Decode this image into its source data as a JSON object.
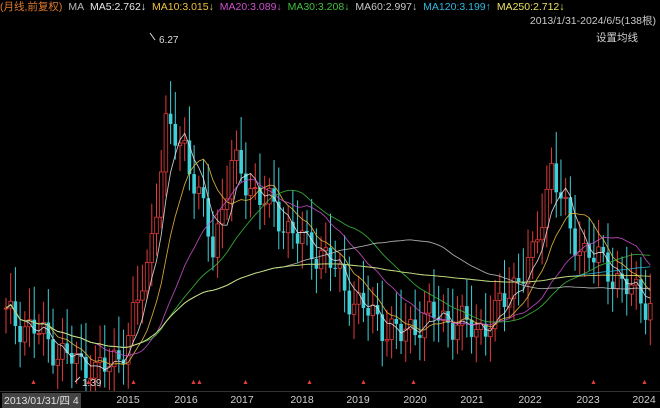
{
  "title": "(月线,前复权)",
  "ma_prefix": "MA",
  "ma": [
    {
      "label": "MA5:2.762↓",
      "color": "#e8e8e8"
    },
    {
      "label": "MA10:3.015↓",
      "color": "#f0c040"
    },
    {
      "label": "MA20:3.089↓",
      "color": "#d050d0"
    },
    {
      "label": "MA30:3.208↓",
      "color": "#40c040"
    },
    {
      "label": "MA60:2.997↓",
      "color": "#c8c8c8"
    },
    {
      "label": "MA120:3.199↑",
      "color": "#30b8e0"
    },
    {
      "label": "MA250:2.712↓",
      "color": "#e8e060"
    }
  ],
  "range_text": "2013/1/31-2024/6/5(138根)",
  "settings_label": "设置均线",
  "start_date_label": "2013/01/31/四",
  "start_suffix": "4",
  "years": [
    "2015",
    "2016",
    "2017",
    "2018",
    "2019",
    "2020",
    "2021",
    "2022",
    "2023",
    "2024"
  ],
  "max_label": "6.27",
  "min_label": "1.39",
  "colors": {
    "up": "#e23b3b",
    "down": "#3fd0d8",
    "marker": "#e23b3b"
  },
  "chart_data": {
    "type": "candlestick",
    "period": "monthly",
    "x_range": [
      "2013/01/31",
      "2024/06/05"
    ],
    "bar_count": 138,
    "high": 6.27,
    "low": 1.39,
    "ma_last": {
      "MA5": 2.762,
      "MA10": 3.015,
      "MA20": 3.089,
      "MA30": 3.208,
      "MA60": 2.997,
      "MA120": 3.199,
      "MA250": 2.712
    }
  }
}
